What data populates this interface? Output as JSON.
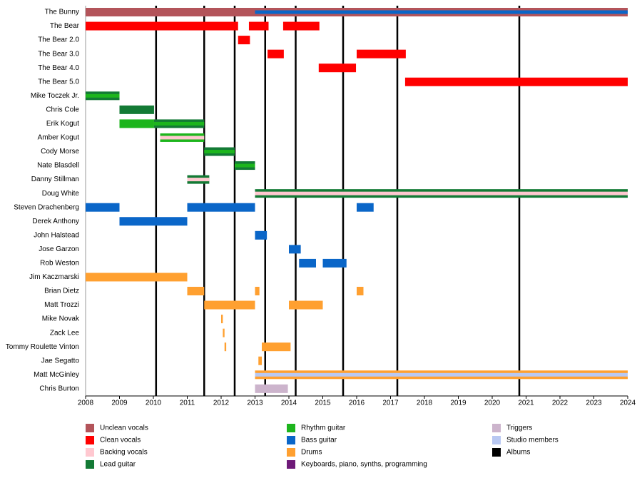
{
  "chart_data": {
    "type": "timeline",
    "xlim": [
      2008,
      2024
    ],
    "xticks": [
      2008,
      2009,
      2010,
      2011,
      2012,
      2013,
      2014,
      2015,
      2016,
      2017,
      2018,
      2019,
      2020,
      2021,
      2022,
      2023,
      2024
    ],
    "roles": [
      {
        "name": "Unclean vocals",
        "color": "#b3545a"
      },
      {
        "name": "Clean vocals",
        "color": "#ff0000"
      },
      {
        "name": "Backing vocals",
        "color": "#ffc8d0"
      },
      {
        "name": "Lead guitar",
        "color": "#137a35"
      },
      {
        "name": "Rhythm guitar",
        "color": "#1db51d"
      },
      {
        "name": "Bass guitar",
        "color": "#0a66c8"
      },
      {
        "name": "Drums",
        "color": "#ffa030"
      },
      {
        "name": "Keyboards, piano, synths, programming",
        "color": "#6e1a78"
      },
      {
        "name": "Triggers",
        "color": "#ccb4cc"
      },
      {
        "name": "Studio members",
        "color": "#b8c8f2"
      }
    ],
    "albums": {
      "name": "Albums",
      "color": "#000000",
      "values": [
        2010.08,
        2011.5,
        2012.4,
        2013.3,
        2014.2,
        2015.6,
        2017.2,
        2020.8
      ]
    },
    "members": [
      {
        "name": "The Bunny",
        "segments": [
          {
            "start": 2008,
            "end": 2013,
            "role": "Unclean vocals"
          },
          {
            "start": 2013,
            "end": 2024,
            "role": "Unclean vocals",
            "inner": "Bass guitar"
          }
        ]
      },
      {
        "name": "The Bear",
        "segments": [
          {
            "start": 2008,
            "end": 2012.5,
            "role": "Clean vocals"
          },
          {
            "start": 2012.82,
            "end": 2013.4,
            "role": "Clean vocals"
          },
          {
            "start": 2013.83,
            "end": 2014.9,
            "role": "Clean vocals"
          }
        ]
      },
      {
        "name": "The Bear 2.0",
        "segments": [
          {
            "start": 2012.5,
            "end": 2012.85,
            "role": "Clean vocals"
          }
        ]
      },
      {
        "name": "The Bear 3.0",
        "segments": [
          {
            "start": 2013.37,
            "end": 2013.85,
            "role": "Clean vocals"
          },
          {
            "start": 2016,
            "end": 2017.45,
            "role": "Clean vocals"
          }
        ]
      },
      {
        "name": "The Bear 4.0",
        "segments": [
          {
            "start": 2014.88,
            "end": 2015.98,
            "role": "Clean vocals"
          }
        ]
      },
      {
        "name": "The Bear 5.0",
        "segments": [
          {
            "start": 2017.43,
            "end": 2024,
            "role": "Clean vocals"
          }
        ]
      },
      {
        "name": "Mike Toczek Jr.",
        "segments": [
          {
            "start": 2008,
            "end": 2009,
            "role": "Lead guitar",
            "inner": "Rhythm guitar"
          }
        ]
      },
      {
        "name": "Chris Cole",
        "segments": [
          {
            "start": 2009,
            "end": 2010.02,
            "role": "Lead guitar"
          }
        ]
      },
      {
        "name": "Erik Kogut",
        "segments": [
          {
            "start": 2009,
            "end": 2010.02,
            "role": "Rhythm guitar"
          },
          {
            "start": 2010.02,
            "end": 2011.5,
            "role": "Lead guitar",
            "inner": "Rhythm guitar"
          }
        ]
      },
      {
        "name": "Amber Kogut",
        "segments": [
          {
            "start": 2010.2,
            "end": 2011.5,
            "role": "Rhythm guitar",
            "inner": "Backing vocals"
          }
        ]
      },
      {
        "name": "Cody Morse",
        "segments": [
          {
            "start": 2011.5,
            "end": 2012.4,
            "role": "Lead guitar",
            "inner": "Rhythm guitar"
          }
        ]
      },
      {
        "name": "Nate Blasdell",
        "segments": [
          {
            "start": 2012.4,
            "end": 2013,
            "role": "Lead guitar",
            "inner": "Rhythm guitar"
          }
        ]
      },
      {
        "name": "Danny Stillman",
        "segments": [
          {
            "start": 2011,
            "end": 2011.65,
            "role": "Lead guitar",
            "inner": "Backing vocals"
          }
        ]
      },
      {
        "name": "Doug White",
        "segments": [
          {
            "start": 2013,
            "end": 2024,
            "role": "Lead guitar",
            "inner": "Backing vocals"
          }
        ]
      },
      {
        "name": "Steven Drachenberg",
        "segments": [
          {
            "start": 2008,
            "end": 2009,
            "role": "Bass guitar"
          },
          {
            "start": 2011,
            "end": 2013,
            "role": "Bass guitar"
          },
          {
            "start": 2016,
            "end": 2016.5,
            "role": "Bass guitar"
          }
        ]
      },
      {
        "name": "Derek Anthony",
        "segments": [
          {
            "start": 2009,
            "end": 2011,
            "role": "Bass guitar"
          }
        ]
      },
      {
        "name": "John Halstead",
        "segments": [
          {
            "start": 2013,
            "end": 2013.35,
            "role": "Bass guitar"
          }
        ]
      },
      {
        "name": "Jose Garzon",
        "segments": [
          {
            "start": 2014,
            "end": 2014.35,
            "role": "Bass guitar"
          }
        ]
      },
      {
        "name": "Rob Weston",
        "segments": [
          {
            "start": 2014.3,
            "end": 2014.8,
            "role": "Bass guitar"
          },
          {
            "start": 2015,
            "end": 2015.7,
            "role": "Bass guitar"
          }
        ]
      },
      {
        "name": "Jim Kaczmarski",
        "segments": [
          {
            "start": 2008,
            "end": 2011,
            "role": "Drums"
          }
        ]
      },
      {
        "name": "Brian Dietz",
        "segments": [
          {
            "start": 2011,
            "end": 2011.5,
            "role": "Drums"
          },
          {
            "start": 2013,
            "end": 2013.13,
            "role": "Drums"
          },
          {
            "start": 2016,
            "end": 2016.2,
            "role": "Drums"
          }
        ]
      },
      {
        "name": "Matt Trozzi",
        "segments": [
          {
            "start": 2011.5,
            "end": 2013,
            "role": "Drums"
          },
          {
            "start": 2014,
            "end": 2015,
            "role": "Drums"
          }
        ]
      },
      {
        "name": "Mike Novak",
        "segments": [
          {
            "start": 2012,
            "end": 2012.05,
            "role": "Drums"
          }
        ]
      },
      {
        "name": "Zack Lee",
        "segments": [
          {
            "start": 2012.05,
            "end": 2012.1,
            "role": "Drums"
          }
        ]
      },
      {
        "name": "Tommy Roulette Vinton",
        "segments": [
          {
            "start": 2012.1,
            "end": 2012.15,
            "role": "Drums"
          },
          {
            "start": 2013.2,
            "end": 2014.05,
            "role": "Drums"
          }
        ]
      },
      {
        "name": "Jae Segatto",
        "segments": [
          {
            "start": 2013.1,
            "end": 2013.2,
            "role": "Drums"
          }
        ]
      },
      {
        "name": "Matt McGinley",
        "segments": [
          {
            "start": 2013,
            "end": 2024,
            "role": "Drums",
            "inner": "Studio members"
          }
        ]
      },
      {
        "name": "Chris Burton",
        "segments": [
          {
            "start": 2013,
            "end": 2013.97,
            "role": "Triggers"
          }
        ]
      }
    ]
  }
}
